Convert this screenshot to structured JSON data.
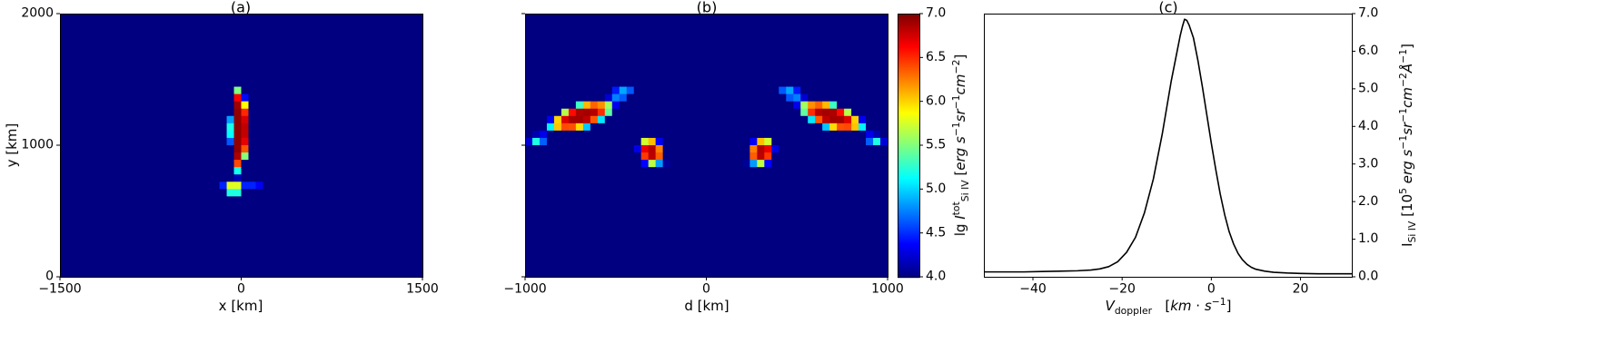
{
  "figure": {
    "background": "#ffffff",
    "text_color": "#000000"
  },
  "chart_data": [
    {
      "type": "heatmap",
      "panel": "a",
      "title": "(a)",
      "xlabel": "x [km]",
      "ylabel": "y [km]",
      "xlim": [
        -1500,
        1500
      ],
      "ylim": [
        0,
        2000
      ],
      "xticks": [
        -1500,
        0,
        1500
      ],
      "xtick_labels": [
        "−1500",
        "0",
        "1500"
      ],
      "yticks": [
        0,
        1000,
        2000
      ],
      "ytick_labels": [
        "0",
        "1000",
        "2000"
      ],
      "colormap": "jet",
      "clim": [
        4.0,
        7.0
      ],
      "grid": {
        "nx": 50,
        "ny": 36
      },
      "background_value": 3.6,
      "features": [
        {
          "name": "central-jet-column",
          "cx": -20,
          "cy": 1120,
          "sx": 75,
          "sy": 330,
          "angle": 0,
          "power": 8,
          "peak": 6.95
        },
        {
          "name": "base-brightening-bar",
          "cx": -60,
          "cy": 670,
          "sx": 130,
          "sy": 42,
          "angle": 0,
          "power": 4,
          "peak": 6.25
        },
        {
          "name": "faint-base-extension",
          "cx": 110,
          "cy": 700,
          "sx": 150,
          "sy": 28,
          "angle": 0,
          "power": 2,
          "peak": 4.6
        },
        {
          "name": "column-base-link",
          "cx": -30,
          "cy": 800,
          "sx": 45,
          "sy": 75,
          "angle": 0,
          "power": 2,
          "peak": 5.2
        }
      ]
    },
    {
      "type": "heatmap",
      "panel": "b",
      "title": "(b)",
      "xlabel": "d [km]",
      "xlim": [
        -1000,
        1000
      ],
      "ylim": [
        0,
        2000
      ],
      "xticks": [
        -1000,
        0,
        1000
      ],
      "xtick_labels": [
        "−1000",
        "0",
        "1000"
      ],
      "yticks": [
        0,
        1000,
        2000
      ],
      "ytick_labels": [],
      "colormap": "jet",
      "clim": [
        4.0,
        7.0
      ],
      "grid": {
        "nx": 50,
        "ny": 36
      },
      "background_value": 3.6,
      "features": [
        {
          "name": "left-arc-blob",
          "cx": -690,
          "cy": 1220,
          "sx": 215,
          "sy": 95,
          "angle": 29,
          "power": 4,
          "peak": 6.9
        },
        {
          "name": "left-arc-hook",
          "cx": -470,
          "cy": 1390,
          "sx": 115,
          "sy": 55,
          "angle": 12,
          "power": 2,
          "peak": 5.4
        },
        {
          "name": "left-arc-tail",
          "cx": -930,
          "cy": 1040,
          "sx": 85,
          "sy": 60,
          "angle": 40,
          "power": 2,
          "peak": 5.3
        },
        {
          "name": "left-inner-blob",
          "cx": -305,
          "cy": 950,
          "sx": 75,
          "sy": 115,
          "angle": 10,
          "power": 4,
          "peak": 6.85
        },
        {
          "name": "left-inner-tail",
          "cx": -200,
          "cy": 880,
          "sx": 65,
          "sy": 30,
          "angle": 15,
          "power": 2,
          "peak": 4.8
        },
        {
          "name": "right-arc-blob",
          "cx": 690,
          "cy": 1220,
          "sx": 215,
          "sy": 95,
          "angle": -29,
          "power": 4,
          "peak": 6.9
        },
        {
          "name": "right-arc-hook",
          "cx": 470,
          "cy": 1390,
          "sx": 115,
          "sy": 55,
          "angle": -12,
          "power": 2,
          "peak": 5.4
        },
        {
          "name": "right-arc-tail",
          "cx": 930,
          "cy": 1040,
          "sx": 85,
          "sy": 60,
          "angle": -40,
          "power": 2,
          "peak": 5.3
        },
        {
          "name": "right-inner-blob",
          "cx": 305,
          "cy": 950,
          "sx": 75,
          "sy": 115,
          "angle": -10,
          "power": 4,
          "peak": 6.85
        },
        {
          "name": "right-inner-tail",
          "cx": 200,
          "cy": 880,
          "sx": 65,
          "sy": 30,
          "angle": -15,
          "power": 2,
          "peak": 4.8
        }
      ],
      "colorbar": {
        "clim": [
          4.0,
          7.0
        ],
        "ticks": [
          4.0,
          4.5,
          5.0,
          5.5,
          6.0,
          6.5,
          7.0
        ],
        "tick_labels": [
          "4.0",
          "4.5",
          "5.0",
          "5.5",
          "6.0",
          "6.5",
          "7.0"
        ],
        "label_text": "lg I_tot_Si IV [erg s−1 sr−1 cm−2]",
        "label_html": "lg <i>I</i><sup>tot</sup><sub>Si IV</sub> [<i>erg s</i><sup>−1</sup><i>sr</i><sup>−1</sup><i>cm</i><sup>−2</sup>]"
      }
    },
    {
      "type": "line",
      "panel": "c",
      "title": "(c)",
      "xlabel_text": "V_doppler [km·s−1]",
      "xlabel_html": "<i>V</i><sub>doppler</sub>&nbsp;&nbsp; [<i>km</i> · <i>s</i><sup>−1</sup>]",
      "ylabel_text": "I_Si IV [10^5 erg s−1 sr−1 cm−2 Å−1]",
      "ylabel_html": "I<sub>Si IV</sub> [10<sup>5</sup> <i>erg s</i><sup>−1</sup><i>sr</i><sup>−1</sup><i>cm</i><sup>−2</sup><i>Å</i><sup>−1</sup>]",
      "xlim": [
        -51,
        31.5
      ],
      "ylim": [
        0,
        7.0
      ],
      "xticks": [
        -40,
        -20,
        0,
        20
      ],
      "xtick_labels": [
        "−40",
        "−20",
        "0",
        "20"
      ],
      "yticks": [
        0,
        1,
        2,
        3,
        4,
        5,
        6,
        7
      ],
      "ytick_labels": [
        "0.0",
        "1.0",
        "2.0",
        "3.0",
        "4.0",
        "5.0",
        "6.0",
        "7.0"
      ],
      "yaxis_side": "right",
      "line_color": "#000000",
      "x": [
        -51,
        -46,
        -42,
        -38,
        -34,
        -30,
        -27,
        -25,
        -23,
        -21,
        -19,
        -17,
        -15,
        -13,
        -11,
        -10,
        -9,
        -8,
        -7,
        -6.5,
        -6,
        -5.5,
        -5,
        -4,
        -3,
        -2,
        -1,
        0,
        1,
        2,
        3,
        4,
        5,
        6,
        7,
        8,
        9,
        10,
        12,
        14,
        17,
        20,
        24,
        28,
        31.5
      ],
      "y": [
        0.13,
        0.13,
        0.13,
        0.14,
        0.15,
        0.16,
        0.18,
        0.21,
        0.27,
        0.4,
        0.65,
        1.05,
        1.7,
        2.6,
        3.8,
        4.5,
        5.2,
        5.8,
        6.4,
        6.65,
        6.85,
        6.82,
        6.7,
        6.35,
        5.75,
        5.05,
        4.3,
        3.55,
        2.85,
        2.2,
        1.65,
        1.2,
        0.87,
        0.62,
        0.45,
        0.33,
        0.25,
        0.2,
        0.15,
        0.12,
        0.1,
        0.09,
        0.08,
        0.08,
        0.08
      ]
    }
  ]
}
